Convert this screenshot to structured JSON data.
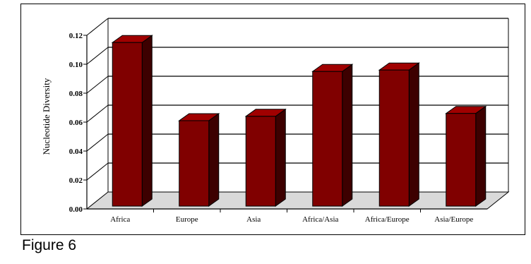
{
  "figure_caption": "Figure 6",
  "chart_data": {
    "type": "bar",
    "ylabel": "Nucleotide Diversity",
    "xlabel": "",
    "ylim": [
      0,
      0.12
    ],
    "yticks": [
      "0.00",
      "0.02",
      "0.04",
      "0.06",
      "0.08",
      "0.10",
      "0.12"
    ],
    "categories": [
      "Africa",
      "Europe",
      "Asia",
      "Africa/Asia",
      "Africa/Europe",
      "Asia/Europe"
    ],
    "values": [
      0.115,
      0.061,
      0.064,
      0.095,
      0.096,
      0.066
    ],
    "bar_color": "#800000",
    "bar_side_color": "#3d0000",
    "bar_top_color": "#a00000",
    "floor_color": "#d9d9d9",
    "grid": true
  }
}
